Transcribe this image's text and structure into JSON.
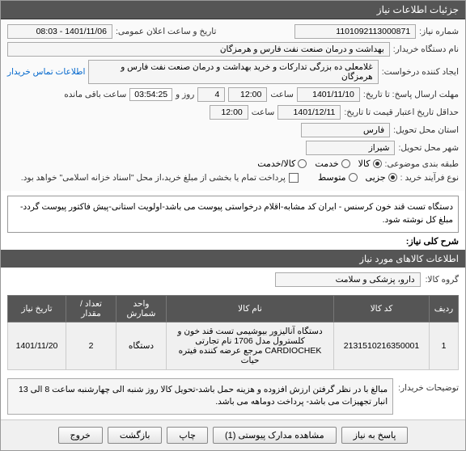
{
  "header": {
    "title": "جزئیات اطلاعات نیاز"
  },
  "form": {
    "need_no_label": "شماره نیاز:",
    "need_no": "1101092113000871",
    "announce_label": "تاریخ و ساعت اعلان عمومی:",
    "announce": "1401/11/06 - 08:03",
    "buyer_org_label": "نام دستگاه خریدار:",
    "buyer_org": "بهداشت و درمان صنعت نفت فارس و هرمزگان",
    "creator_label": "ایجاد کننده درخواست:",
    "creator": "غلامعلی ده بزرگی تدارکات و خرید بهداشت و درمان صنعت نفت فارس و هرمزگان",
    "contact_link": "اطلاعات تماس خریدار",
    "deadline_send_label": "مهلت ارسال پاسخ: تا تاریخ:",
    "deadline_date": "1401/11/10",
    "time_label": "ساعت",
    "deadline_time": "12:00",
    "days_count": "4",
    "days_and": "روز و",
    "countdown": "03:54:25",
    "remain_label": "ساعت باقی مانده",
    "validity_label": "حداقل تاریخ اعتبار قیمت تا تاریخ:",
    "validity_date": "1401/12/11",
    "validity_time": "12:00",
    "province_label": "استان محل تحویل:",
    "province": "فارس",
    "city_label": "شهر محل تحویل:",
    "city": "شیراز",
    "category_label": "طبقه بندی موضوعی:",
    "cat_goods": "کالا",
    "cat_service": "خدمت",
    "cat_goods_service": "کالا/خدمت",
    "buy_type_label": "نوع فرآیند خرید :",
    "buy_minor": "جزیی",
    "buy_medium": "متوسط",
    "partial_pay_text": "پرداخت تمام یا بخشی از مبلغ خرید،از محل \"اسناد خزانه اسلامی\" خواهد بود."
  },
  "description": {
    "label": "شرح کلی نیاز:",
    "text": "دستگاه تست قند خون کرسنس - ایران کد مشابه-اقلام درخواستی پیوست می باشد-اولویت استانی-پیش فاکتور پیوست گردد-مبلغ کل نوشته شود."
  },
  "goods_section": {
    "title": "اطلاعات کالاهای مورد نیاز",
    "group_label": "گروه کالا:",
    "group_value": "دارو، پزشکی و سلامت"
  },
  "table": {
    "columns": [
      "ردیف",
      "کد کالا",
      "نام کالا",
      "واحد شمارش",
      "تعداد / مقدار",
      "تاریخ نیاز"
    ],
    "rows": [
      [
        "1",
        "2131510216350001",
        "دستگاه آنالیزور بیوشیمی تست قند خون و کلسترول مدل 1706 نام تجارتی CARDIOCHEK مرجع عرضه کننده فیتره حیات",
        "دستگاه",
        "2",
        "1401/11/20"
      ]
    ],
    "col_widths": [
      "36px",
      "118px",
      "auto",
      "62px",
      "62px",
      "72px"
    ]
  },
  "notes": {
    "label": "توضیحات خریدار:",
    "text": "مبالغ با در نظر گرفتن ارزش افزوده و هزینه حمل باشد-تحویل کالا روز شنبه الی چهارشنبه ساعت 8 الی 13 انبار تجهیزات می باشد- پرداخت دوماهه می باشد."
  },
  "buttons": {
    "respond": "پاسخ به نیاز",
    "attachments": "مشاهده مدارک پیوستی (1)",
    "print": "چاپ",
    "back": "بازگشت",
    "exit": "خروج"
  },
  "colors": {
    "header_bg": "#555555",
    "border": "#999999",
    "link": "#0066cc"
  }
}
